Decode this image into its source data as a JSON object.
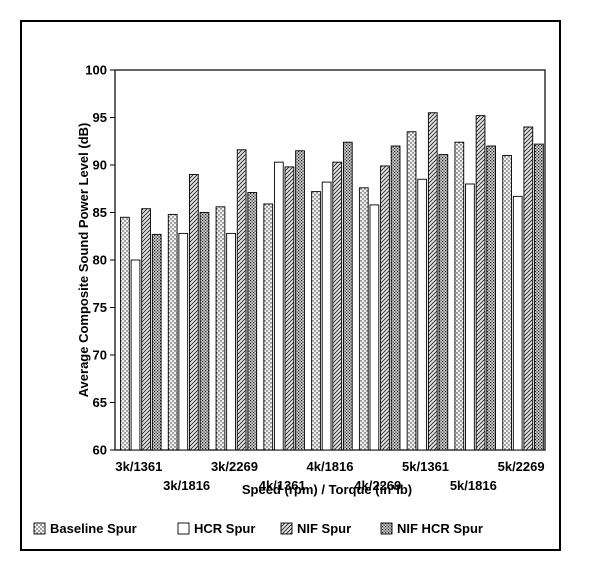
{
  "chart_data": {
    "type": "bar",
    "title": "",
    "xlabel": "Speed (rpm) / Torque (in*lb)",
    "ylabel": "Average Composite Sound Power Level (dB)",
    "ylim": [
      60,
      100
    ],
    "yticks": [
      60,
      65,
      70,
      75,
      80,
      85,
      90,
      95,
      100
    ],
    "grid": false,
    "legend_position": "bottom",
    "categories": [
      "3k/1361",
      "3k/1816",
      "3k/2269",
      "4k/1361",
      "4k/1816",
      "4k/2269",
      "5k/1361",
      "5k/1816",
      "5k/2269"
    ],
    "series": [
      {
        "name": "Baseline Spur",
        "pattern": "dots",
        "values": [
          84.5,
          84.8,
          85.6,
          85.9,
          87.2,
          87.6,
          93.5,
          92.4,
          91.0
        ]
      },
      {
        "name": "HCR Spur",
        "pattern": "white",
        "values": [
          80.0,
          82.8,
          82.8,
          90.3,
          88.2,
          85.8,
          88.5,
          88.0,
          86.7
        ]
      },
      {
        "name": "NIF Spur",
        "pattern": "hatch",
        "values": [
          85.4,
          89.0,
          91.6,
          89.8,
          90.3,
          89.9,
          95.5,
          95.2,
          94.0
        ]
      },
      {
        "name": "NIF HCR Spur",
        "pattern": "dense",
        "values": [
          82.7,
          85.0,
          87.1,
          91.5,
          92.4,
          92.0,
          91.1,
          92.0,
          92.2
        ]
      }
    ]
  }
}
